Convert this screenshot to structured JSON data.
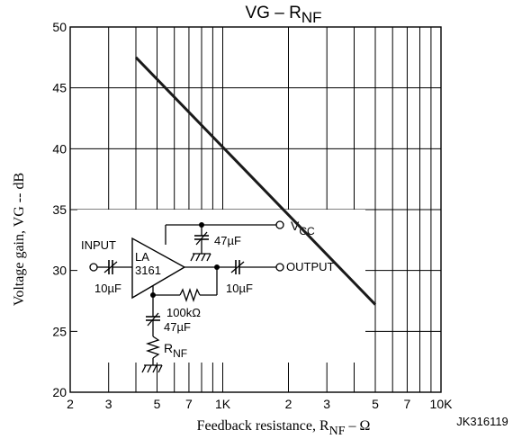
{
  "chart_data": {
    "type": "line",
    "title": "VG – R",
    "title_sub": "NF",
    "xlabel": "Feedback resistance, R",
    "xlabel_sub": "NF",
    "xlabel_suffix": " – Ω",
    "ylabel": "Voltage gain, VG -- dB",
    "x_scale": "log",
    "xlim": [
      200,
      10000
    ],
    "ylim": [
      20,
      50
    ],
    "grid": true,
    "x_ticks": [
      {
        "value": 200,
        "label": "2"
      },
      {
        "value": 300,
        "label": "3"
      },
      {
        "value": 500,
        "label": "5"
      },
      {
        "value": 700,
        "label": "7"
      },
      {
        "value": 1000,
        "label": "1K"
      },
      {
        "value": 2000,
        "label": "2"
      },
      {
        "value": 3000,
        "label": "3"
      },
      {
        "value": 5000,
        "label": "5"
      },
      {
        "value": 7000,
        "label": "7"
      },
      {
        "value": 10000,
        "label": "10K"
      }
    ],
    "x_grid_extra": [
      400,
      600,
      800,
      900,
      4000,
      6000,
      8000,
      9000
    ],
    "y_ticks": [
      20,
      25,
      30,
      35,
      40,
      45,
      50
    ],
    "series": [
      {
        "x": [
          400,
          5000
        ],
        "y": [
          47.5,
          27.2
        ]
      }
    ],
    "figure_code": "JK316119"
  },
  "circuit": {
    "input_label": "INPUT",
    "output_label": "OUTPUT",
    "ic_label_line1": "LA",
    "ic_label_line2": "3161",
    "vcc_label": "V",
    "vcc_sub": "CC",
    "c_in": "10µF",
    "c_out": "10µF",
    "c_dec": "47µF",
    "c_nf": "47µF",
    "r_fb": "100kΩ",
    "r_nf": "R",
    "r_nf_sub": "NF"
  },
  "colors": {
    "line": "#1a1a1a",
    "grid": "#000000"
  }
}
